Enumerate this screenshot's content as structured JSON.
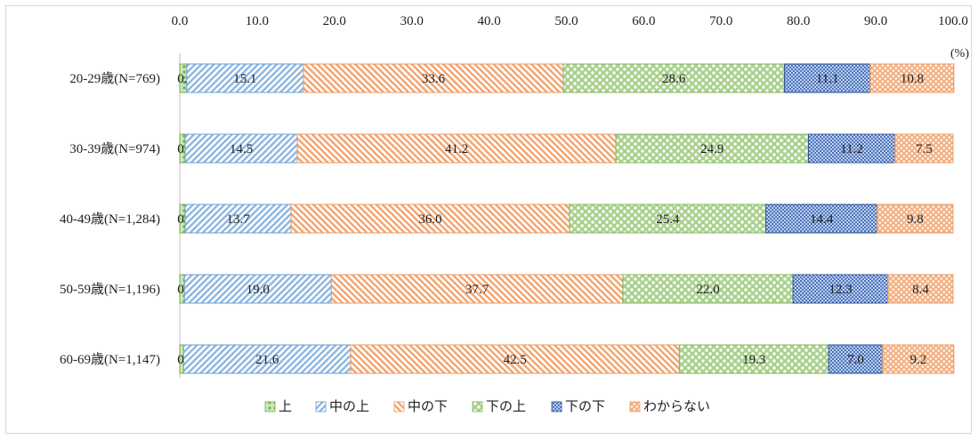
{
  "chart_data": {
    "type": "bar",
    "orientation": "horizontal",
    "stacked": true,
    "unit_label": "(%)",
    "xlim": [
      0,
      100
    ],
    "x_ticks": [
      "0.0",
      "10.0",
      "20.0",
      "30.0",
      "40.0",
      "50.0",
      "60.0",
      "70.0",
      "80.0",
      "90.0",
      "100.0"
    ],
    "categories": [
      "20-29歳(N=769)",
      "30-39歳(N=974)",
      "40-49歳(N=1,284)",
      "50-59歳(N=1,196)",
      "60-69歳(N=1,147)"
    ],
    "series": [
      {
        "name": "上",
        "values": [
          0.9,
          0.7,
          0.7,
          0.6,
          0.5
        ],
        "labels": [
          "0.9",
          "0.7",
          "0.7",
          "0.6",
          "0.5"
        ],
        "color": "#9bd17a",
        "pattern": "dots"
      },
      {
        "name": "中の上",
        "values": [
          15.1,
          14.5,
          13.7,
          19.0,
          21.6
        ],
        "labels": [
          "15.1",
          "14.5",
          "13.7",
          "19.0",
          "21.6"
        ],
        "color": "#9cc3e6",
        "pattern": "diagonal-up"
      },
      {
        "name": "中の下",
        "values": [
          33.6,
          41.2,
          36.0,
          37.7,
          42.5
        ],
        "labels": [
          "33.6",
          "41.2",
          "36.0",
          "37.7",
          "42.5"
        ],
        "color": "#f4b183",
        "pattern": "diagonal-down"
      },
      {
        "name": "下の上",
        "values": [
          28.6,
          24.9,
          25.4,
          22.0,
          19.3
        ],
        "labels": [
          "28.6",
          "24.9",
          "25.4",
          "22.0",
          "19.3"
        ],
        "color": "#a9d18e",
        "pattern": "checker"
      },
      {
        "name": "下の下",
        "values": [
          11.1,
          11.2,
          14.4,
          12.3,
          7.0
        ],
        "labels": [
          "11.1",
          "11.2",
          "14.4",
          "12.3",
          "7.0"
        ],
        "color": "#4472c4",
        "pattern": "grid"
      },
      {
        "name": "わからない",
        "values": [
          10.8,
          7.5,
          9.8,
          8.4,
          9.2
        ],
        "labels": [
          "10.8",
          "7.5",
          "9.8",
          "8.4",
          "9.2"
        ],
        "color": "#f4b183",
        "pattern": "bricks"
      }
    ],
    "legend_position": "bottom",
    "grid": false
  }
}
